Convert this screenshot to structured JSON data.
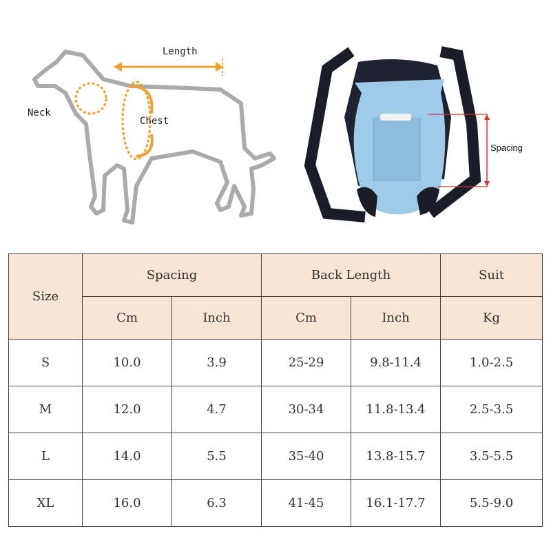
{
  "diagram": {
    "dog_labels": {
      "length": "Length",
      "neck": "Neck",
      "chest": "Chest"
    },
    "carrier_label": "Spacing",
    "accent_color": "#f0a030",
    "measure_color": "#e03030"
  },
  "table": {
    "header_fill": "#f9e4d5",
    "size_header": "Size",
    "groups": [
      {
        "label": "Spacing",
        "units": [
          "Cm",
          "Inch"
        ]
      },
      {
        "label": "Back Length",
        "units": [
          "Cm",
          "Inch"
        ]
      },
      {
        "label": "Suit",
        "units": [
          "Kg"
        ]
      }
    ],
    "rows": [
      {
        "size": "S",
        "spacing_cm": "10.0",
        "spacing_in": "3.9",
        "back_cm": "25-29",
        "back_in": "9.8-11.4",
        "kg": "1.0-2.5"
      },
      {
        "size": "M",
        "spacing_cm": "12.0",
        "spacing_in": "4.7",
        "back_cm": "30-34",
        "back_in": "11.8-13.4",
        "kg": "2.5-3.5"
      },
      {
        "size": "L",
        "spacing_cm": "14.0",
        "spacing_in": "5.5",
        "back_cm": "35-40",
        "back_in": "13.8-15.7",
        "kg": "3.5-5.5"
      },
      {
        "size": "XL",
        "spacing_cm": "16.0",
        "spacing_in": "6.3",
        "back_cm": "41-45",
        "back_in": "16.1-17.7",
        "kg": "5.5-9.0"
      }
    ]
  }
}
